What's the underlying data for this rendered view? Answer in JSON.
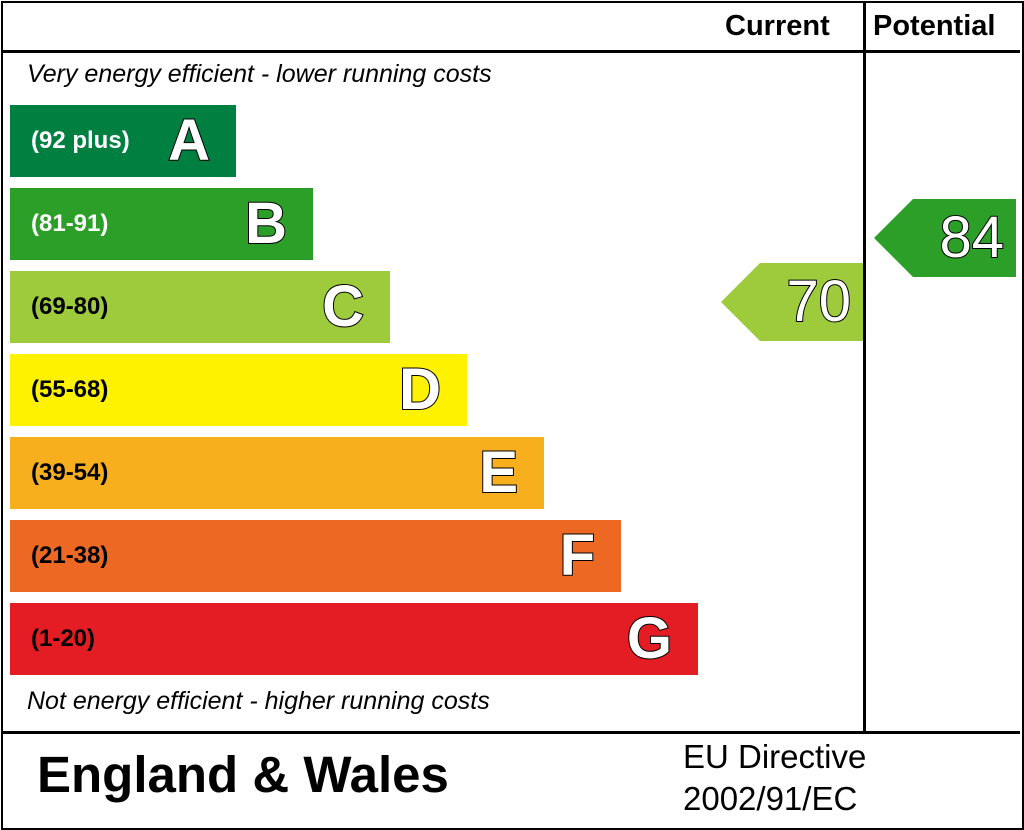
{
  "header": {
    "current_label": "Current",
    "potential_label": "Potential"
  },
  "notes": {
    "top": "Very energy efficient - lower running costs",
    "bottom": "Not energy efficient - higher running costs"
  },
  "footer": {
    "region": "England & Wales",
    "directive_line1": "EU Directive",
    "directive_line2": "2002/91/EC"
  },
  "chart_data": {
    "type": "bar",
    "title": "",
    "bands": [
      {
        "letter": "A",
        "range": "(92 plus)",
        "min": 92,
        "max": 100,
        "color": "#008040",
        "range_text_color": "#ffffff"
      },
      {
        "letter": "B",
        "range": "(81-91)",
        "min": 81,
        "max": 91,
        "color": "#2c9f29",
        "range_text_color": "#ffffff"
      },
      {
        "letter": "C",
        "range": "(69-80)",
        "min": 69,
        "max": 80,
        "color": "#9dcb3c",
        "range_text_color": "#000000"
      },
      {
        "letter": "D",
        "range": "(55-68)",
        "min": 55,
        "max": 68,
        "color": "#fff200",
        "range_text_color": "#000000"
      },
      {
        "letter": "E",
        "range": "(39-54)",
        "min": 39,
        "max": 54,
        "color": "#f7af1d",
        "range_text_color": "#000000"
      },
      {
        "letter": "F",
        "range": "(21-38)",
        "min": 21,
        "max": 38,
        "color": "#ed6823",
        "range_text_color": "#000000"
      },
      {
        "letter": "G",
        "range": "(1-20)",
        "min": 1,
        "max": 20,
        "color": "#e41d25",
        "range_text_color": "#000000"
      }
    ],
    "current": {
      "value": 70,
      "band": "C",
      "color": "#9dcb3c"
    },
    "potential": {
      "value": 84,
      "band": "B",
      "color": "#2c9f29"
    }
  }
}
